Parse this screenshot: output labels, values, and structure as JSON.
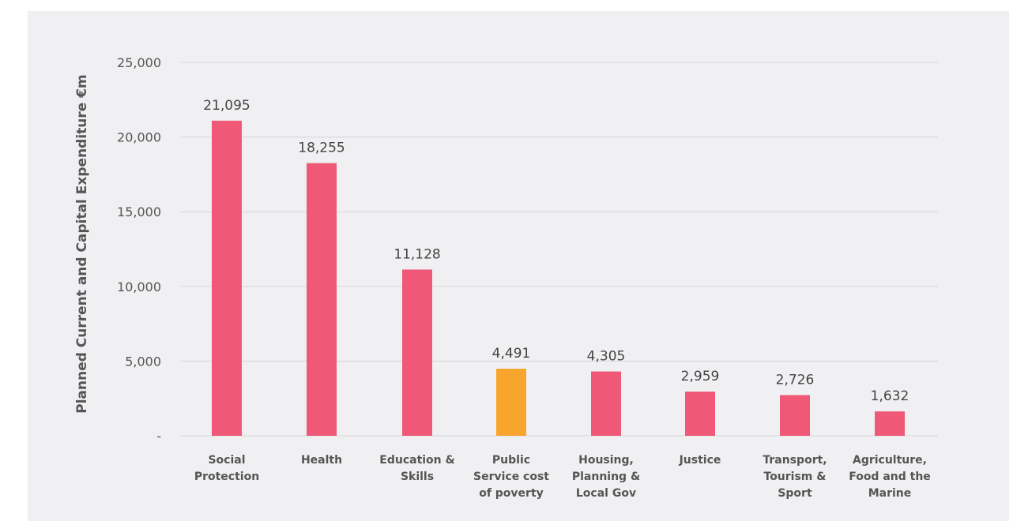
{
  "chart_data": {
    "type": "bar",
    "ylabel": "Planned Current and Capital Expenditure  €m",
    "ylim": [
      0,
      25000
    ],
    "yticks": [
      {
        "value": 25000,
        "label": "25,000"
      },
      {
        "value": 20000,
        "label": "20,000"
      },
      {
        "value": 15000,
        "label": "15,000"
      },
      {
        "value": 10000,
        "label": "10,000"
      },
      {
        "value": 5000,
        "label": "5,000"
      },
      {
        "value": 0,
        "label": "-"
      }
    ],
    "grid": true,
    "categories": [
      [
        "Social",
        "Protection"
      ],
      [
        "Health"
      ],
      [
        "Education &",
        "Skills"
      ],
      [
        "Public",
        "Service cost",
        "of poverty"
      ],
      [
        "Housing,",
        "Planning &",
        "Local Gov"
      ],
      [
        "Justice"
      ],
      [
        "Transport,",
        "Tourism &",
        "Sport"
      ],
      [
        "Agriculture,",
        "Food and the",
        "Marine"
      ]
    ],
    "values": [
      21095,
      18255,
      11128,
      4491,
      4305,
      2959,
      2726,
      1632
    ],
    "value_labels": [
      "21,095",
      "18,255",
      "11,128",
      "4,491",
      "4,305",
      "2,959",
      "2,726",
      "1,632"
    ],
    "highlight_index": 3,
    "colors": {
      "bar": "#ef5876",
      "highlight": "#f7a52c",
      "grid": "#d6d6da",
      "background": "#f0f0f2"
    }
  }
}
